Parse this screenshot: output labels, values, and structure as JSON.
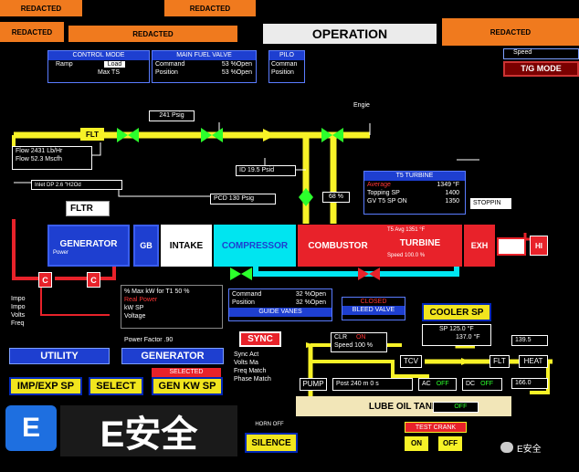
{
  "top": {
    "redacted": "REDACTED",
    "operation": "OPERATION",
    "speed_label": "Speed",
    "tg_mode": "T/G MODE"
  },
  "control_mode": {
    "title": "CONTROL MODE",
    "rows": [
      [
        "Ramp",
        "Load"
      ],
      [
        "",
        "Max   TS"
      ]
    ]
  },
  "main_fuel_valve": {
    "title": "MAIN FUEL VALVE",
    "rows": [
      [
        "Command",
        "53 %Open"
      ],
      [
        "Position",
        "53 %Open"
      ]
    ]
  },
  "pilot": {
    "title": "PILO",
    "rows": [
      "Comman",
      "Position"
    ]
  },
  "fuel_line": {
    "flt": "FLT",
    "pressure": "241 Psig",
    "engine_label": "Engie",
    "flow1": "Flow   2431 Lb/Hr",
    "flow2": "Flow   52.3 Mscfh",
    "inlet_dp": "Inlet DP    2.6 \"H2Od",
    "id_psid": "ID  19.5 Psid",
    "pcd": "PCD   130 Psig",
    "valve_pct": "68 %"
  },
  "turbine_box": {
    "title": "T5 TURBINE",
    "rows": [
      [
        "Average",
        "1349 °F"
      ],
      [
        "Topping SP",
        "1400"
      ],
      [
        "GV T5 SP ON",
        "1350"
      ]
    ],
    "stopping": "STOPPIN"
  },
  "train": {
    "fltr": "FLTR",
    "generator": "GENERATOR",
    "generator_power": "Power",
    "gb": "GB",
    "intake": "INTAKE",
    "compressor": "COMPRESSOR",
    "combustor": "COMBUSTOR",
    "turbine": "TURBINE",
    "turbine_t5": "T5 Avg  1351 °F",
    "turbine_speed": "Speed  100.0 %",
    "exh": "EXH",
    "hi": "HI"
  },
  "breakers": {
    "c1": "C",
    "c2": "C"
  },
  "guide_vanes": {
    "rows": [
      [
        "Command",
        "32 %Open"
      ],
      [
        "Position",
        "32 %Open"
      ]
    ],
    "title": "GUIDE VANES"
  },
  "bleed_valve": {
    "status": "CLOSED",
    "title": "BLEED VALVE"
  },
  "gen_info": {
    "rows": [
      "% Max kW for T1   50 %",
      "Real Power",
      "kW SP",
      "Voltage"
    ],
    "pf": "Power Factor    .90",
    "left_rows": [
      "Impo",
      "Impo",
      "Volts",
      "Freq"
    ]
  },
  "utility": "UTILITY",
  "generator_btn": "GENERATOR",
  "selected": "SELECTED",
  "buttons": {
    "imp_exp": "IMP/EXP SP",
    "select": "SELECT",
    "gen_kw": "GEN KW SP",
    "silence": "SILENCE"
  },
  "sync": {
    "title": "SYNC",
    "rows": [
      "Sync Act",
      "Volts Ma",
      "Freq Match",
      "Phase Match"
    ]
  },
  "cooler": {
    "title": "COOLER SP",
    "sp": "SP   125.0 °F",
    "val": "137.0 °F"
  },
  "lube": {
    "clr": "CLR",
    "on": "ON",
    "speed": "Speed  100 %",
    "tcv": "TCV",
    "flt": "FLT",
    "heat": "HEAT",
    "t139": "139.5",
    "t166": "166.0",
    "pump": "PUMP",
    "post": "Post  240 m  0 s",
    "ac": "AC",
    "ac_state": "OFF",
    "dc": "DC",
    "dc_state": "OFF",
    "tank": "LUBE OIL TANK",
    "htr": "HTR",
    "htr_state": "OFF"
  },
  "test_crank": {
    "title": "TEST CRANK",
    "on": "ON",
    "off": "OFF"
  },
  "horn": "HORN OFF",
  "watermark": {
    "badge": "E",
    "brand": "E安全",
    "wechat": "E安全"
  },
  "colors": {
    "yellow": "#f7f227",
    "green": "#2cff2c",
    "red": "#e8222a",
    "blue": "#1e3fd0",
    "cyan": "#00e5f0",
    "orange": "#f07a1e"
  }
}
